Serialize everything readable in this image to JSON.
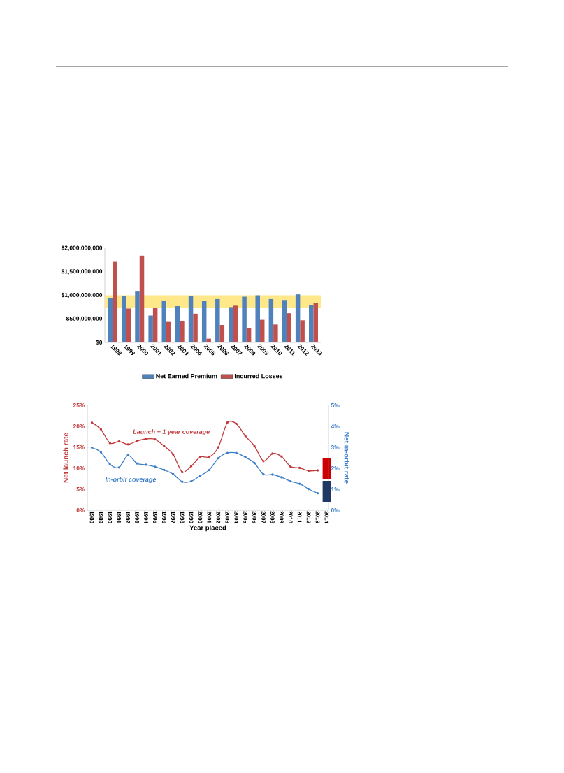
{
  "chart_data": [
    {
      "type": "bar",
      "categories": [
        "1998",
        "1999",
        "2000",
        "2001",
        "2002",
        "2003",
        "2004",
        "2005",
        "2006",
        "2007",
        "2008",
        "2009",
        "2010",
        "2011",
        "2012",
        "2013"
      ],
      "series": [
        {
          "name": "Net Earned Premium",
          "color": "#4f81bd",
          "values": [
            940000000,
            980000000,
            1080000000,
            570000000,
            890000000,
            770000000,
            990000000,
            880000000,
            920000000,
            750000000,
            970000000,
            1000000000,
            920000000,
            900000000,
            1020000000,
            790000000
          ]
        },
        {
          "name": "Incurred Losses",
          "color": "#c0504d",
          "values": [
            1710000000,
            720000000,
            1840000000,
            740000000,
            450000000,
            460000000,
            610000000,
            80000000,
            370000000,
            780000000,
            300000000,
            480000000,
            380000000,
            620000000,
            470000000,
            830000000
          ]
        }
      ],
      "ylim": [
        0,
        2000000000
      ],
      "yticks": [
        {
          "value": 0,
          "label": "$0"
        },
        {
          "value": 500000000,
          "label": "$500,000,000"
        },
        {
          "value": 1000000000,
          "label": "$1,000,000,000"
        },
        {
          "value": 1500000000,
          "label": "$1,500,000,000"
        },
        {
          "value": 2000000000,
          "label": "$2,000,000,000"
        }
      ],
      "bands": [
        {
          "axis": "y",
          "from": 730000000,
          "to": 1000000000,
          "color": "#ffe88a"
        }
      ],
      "legend": "bottom",
      "grid": false
    },
    {
      "type": "line",
      "categories": [
        "1988",
        "1989",
        "1990",
        "1991",
        "1992",
        "1993",
        "1994",
        "1995",
        "1996",
        "1997",
        "1998",
        "1999",
        "2000",
        "2001",
        "2002",
        "2003",
        "2004",
        "2005",
        "2006",
        "2007",
        "2008",
        "2009",
        "2010",
        "2011",
        "2012",
        "2013",
        "2014"
      ],
      "xlabel": "Year placed",
      "ylabel": "Net launch rate",
      "y2label": "Net in-orbit rate",
      "series": [
        {
          "name": "Launch + 1 year coverage",
          "color": "#c0393b",
          "values": [
            20.9,
            19.3,
            16.0,
            16.4,
            15.7,
            16.5,
            17.0,
            16.9,
            15.3,
            13.3,
            9.1,
            10.5,
            12.7,
            12.7,
            15.0,
            20.9,
            20.6,
            17.7,
            15.3,
            11.7,
            13.5,
            12.8,
            10.4,
            10.1,
            9.4,
            9.5,
            null
          ]
        },
        {
          "name": "In-orbit coverage",
          "color": "#3a7dc9",
          "axis": "y2",
          "values": [
            2.99,
            2.77,
            2.19,
            2.04,
            2.62,
            2.23,
            2.17,
            2.07,
            1.92,
            1.72,
            1.36,
            1.38,
            1.64,
            1.92,
            2.48,
            2.73,
            2.73,
            2.53,
            2.25,
            1.71,
            1.7,
            1.57,
            1.38,
            1.26,
            1.01,
            0.81,
            null
          ]
        },
        {
          "type": "bar",
          "color": "#cc0000",
          "base": [
            null,
            null,
            null,
            null,
            null,
            null,
            null,
            null,
            null,
            null,
            null,
            null,
            null,
            null,
            null,
            null,
            null,
            null,
            null,
            null,
            null,
            null,
            null,
            null,
            null,
            null,
            7.5
          ],
          "values": [
            null,
            null,
            null,
            null,
            null,
            null,
            null,
            null,
            null,
            null,
            null,
            null,
            null,
            null,
            null,
            null,
            null,
            null,
            null,
            null,
            null,
            null,
            null,
            null,
            null,
            null,
            4.9
          ]
        },
        {
          "type": "bar",
          "axis": "y2",
          "color": "#1f3864",
          "base": [
            null,
            null,
            null,
            null,
            null,
            null,
            null,
            null,
            null,
            null,
            null,
            null,
            null,
            null,
            null,
            null,
            null,
            null,
            null,
            null,
            null,
            null,
            null,
            null,
            null,
            null,
            0.4
          ],
          "values": [
            null,
            null,
            null,
            null,
            null,
            null,
            null,
            null,
            null,
            null,
            null,
            null,
            null,
            null,
            null,
            null,
            null,
            null,
            null,
            null,
            null,
            null,
            null,
            null,
            null,
            null,
            1.0
          ]
        }
      ],
      "ylim": [
        0,
        25
      ],
      "yticks": [
        {
          "value": 0,
          "label": "0%"
        },
        {
          "value": 5,
          "label": "5%"
        },
        {
          "value": 10,
          "label": "10%"
        },
        {
          "value": 15,
          "label": "15%"
        },
        {
          "value": 20,
          "label": "20%"
        },
        {
          "value": 25,
          "label": "25%"
        }
      ],
      "y2lim": [
        0,
        5
      ],
      "y2ticks": [
        {
          "value": 0,
          "label": "0%"
        },
        {
          "value": 1,
          "label": "1%"
        },
        {
          "value": 2,
          "label": "2%"
        },
        {
          "value": 3,
          "label": "3%"
        },
        {
          "value": 4,
          "label": "4%"
        },
        {
          "value": 5,
          "label": "5%"
        }
      ],
      "marker": "circle",
      "legend": false,
      "grid": false
    }
  ]
}
